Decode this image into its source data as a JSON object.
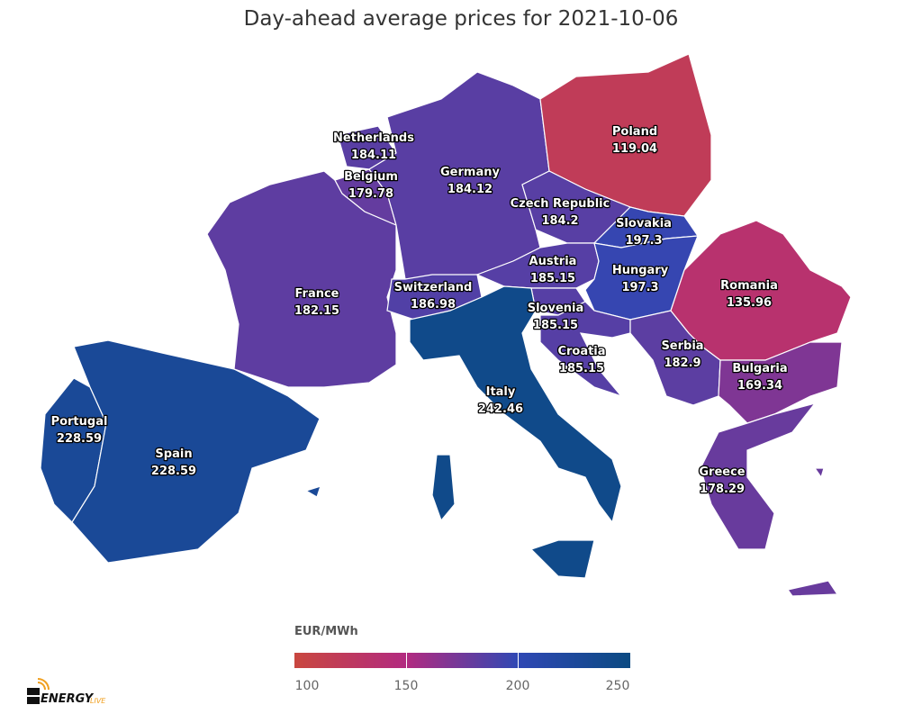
{
  "title": "Day-ahead average prices for 2021-10-06",
  "chart_data": {
    "type": "choropleth",
    "title": "Day-ahead average prices for 2021-10-06",
    "unit": "EUR/MWh",
    "regions": [
      {
        "name": "Portugal",
        "value": 228.59
      },
      {
        "name": "Spain",
        "value": 228.59
      },
      {
        "name": "France",
        "value": 182.15
      },
      {
        "name": "Belgium",
        "value": 179.78
      },
      {
        "name": "Netherlands",
        "value": 184.11
      },
      {
        "name": "Germany",
        "value": 184.12
      },
      {
        "name": "Poland",
        "value": 119.04
      },
      {
        "name": "Czech Republic",
        "value": 184.2
      },
      {
        "name": "Slovakia",
        "value": 197.3
      },
      {
        "name": "Austria",
        "value": 185.15
      },
      {
        "name": "Switzerland",
        "value": 186.98
      },
      {
        "name": "Hungary",
        "value": 197.3
      },
      {
        "name": "Slovenia",
        "value": 185.15
      },
      {
        "name": "Croatia",
        "value": 185.15
      },
      {
        "name": "Italy",
        "value": 242.46
      },
      {
        "name": "Serbia",
        "value": 182.9
      },
      {
        "name": "Romania",
        "value": 135.96
      },
      {
        "name": "Bulgaria",
        "value": 169.34
      },
      {
        "name": "Greece",
        "value": 178.29
      }
    ],
    "color_scale": {
      "title": "EUR/MWh",
      "range": [
        100,
        250
      ],
      "ticks": [
        "100",
        "150",
        "200",
        "250"
      ],
      "stops": [
        {
          "value": 100,
          "color": "#c9473f"
        },
        {
          "value": 150,
          "color": "#b22a80"
        },
        {
          "value": 200,
          "color": "#2f48b4"
        },
        {
          "value": 250,
          "color": "#0b4a82"
        }
      ]
    }
  },
  "logo": {
    "text": "ENERGY",
    "suffix": "LIVE"
  }
}
